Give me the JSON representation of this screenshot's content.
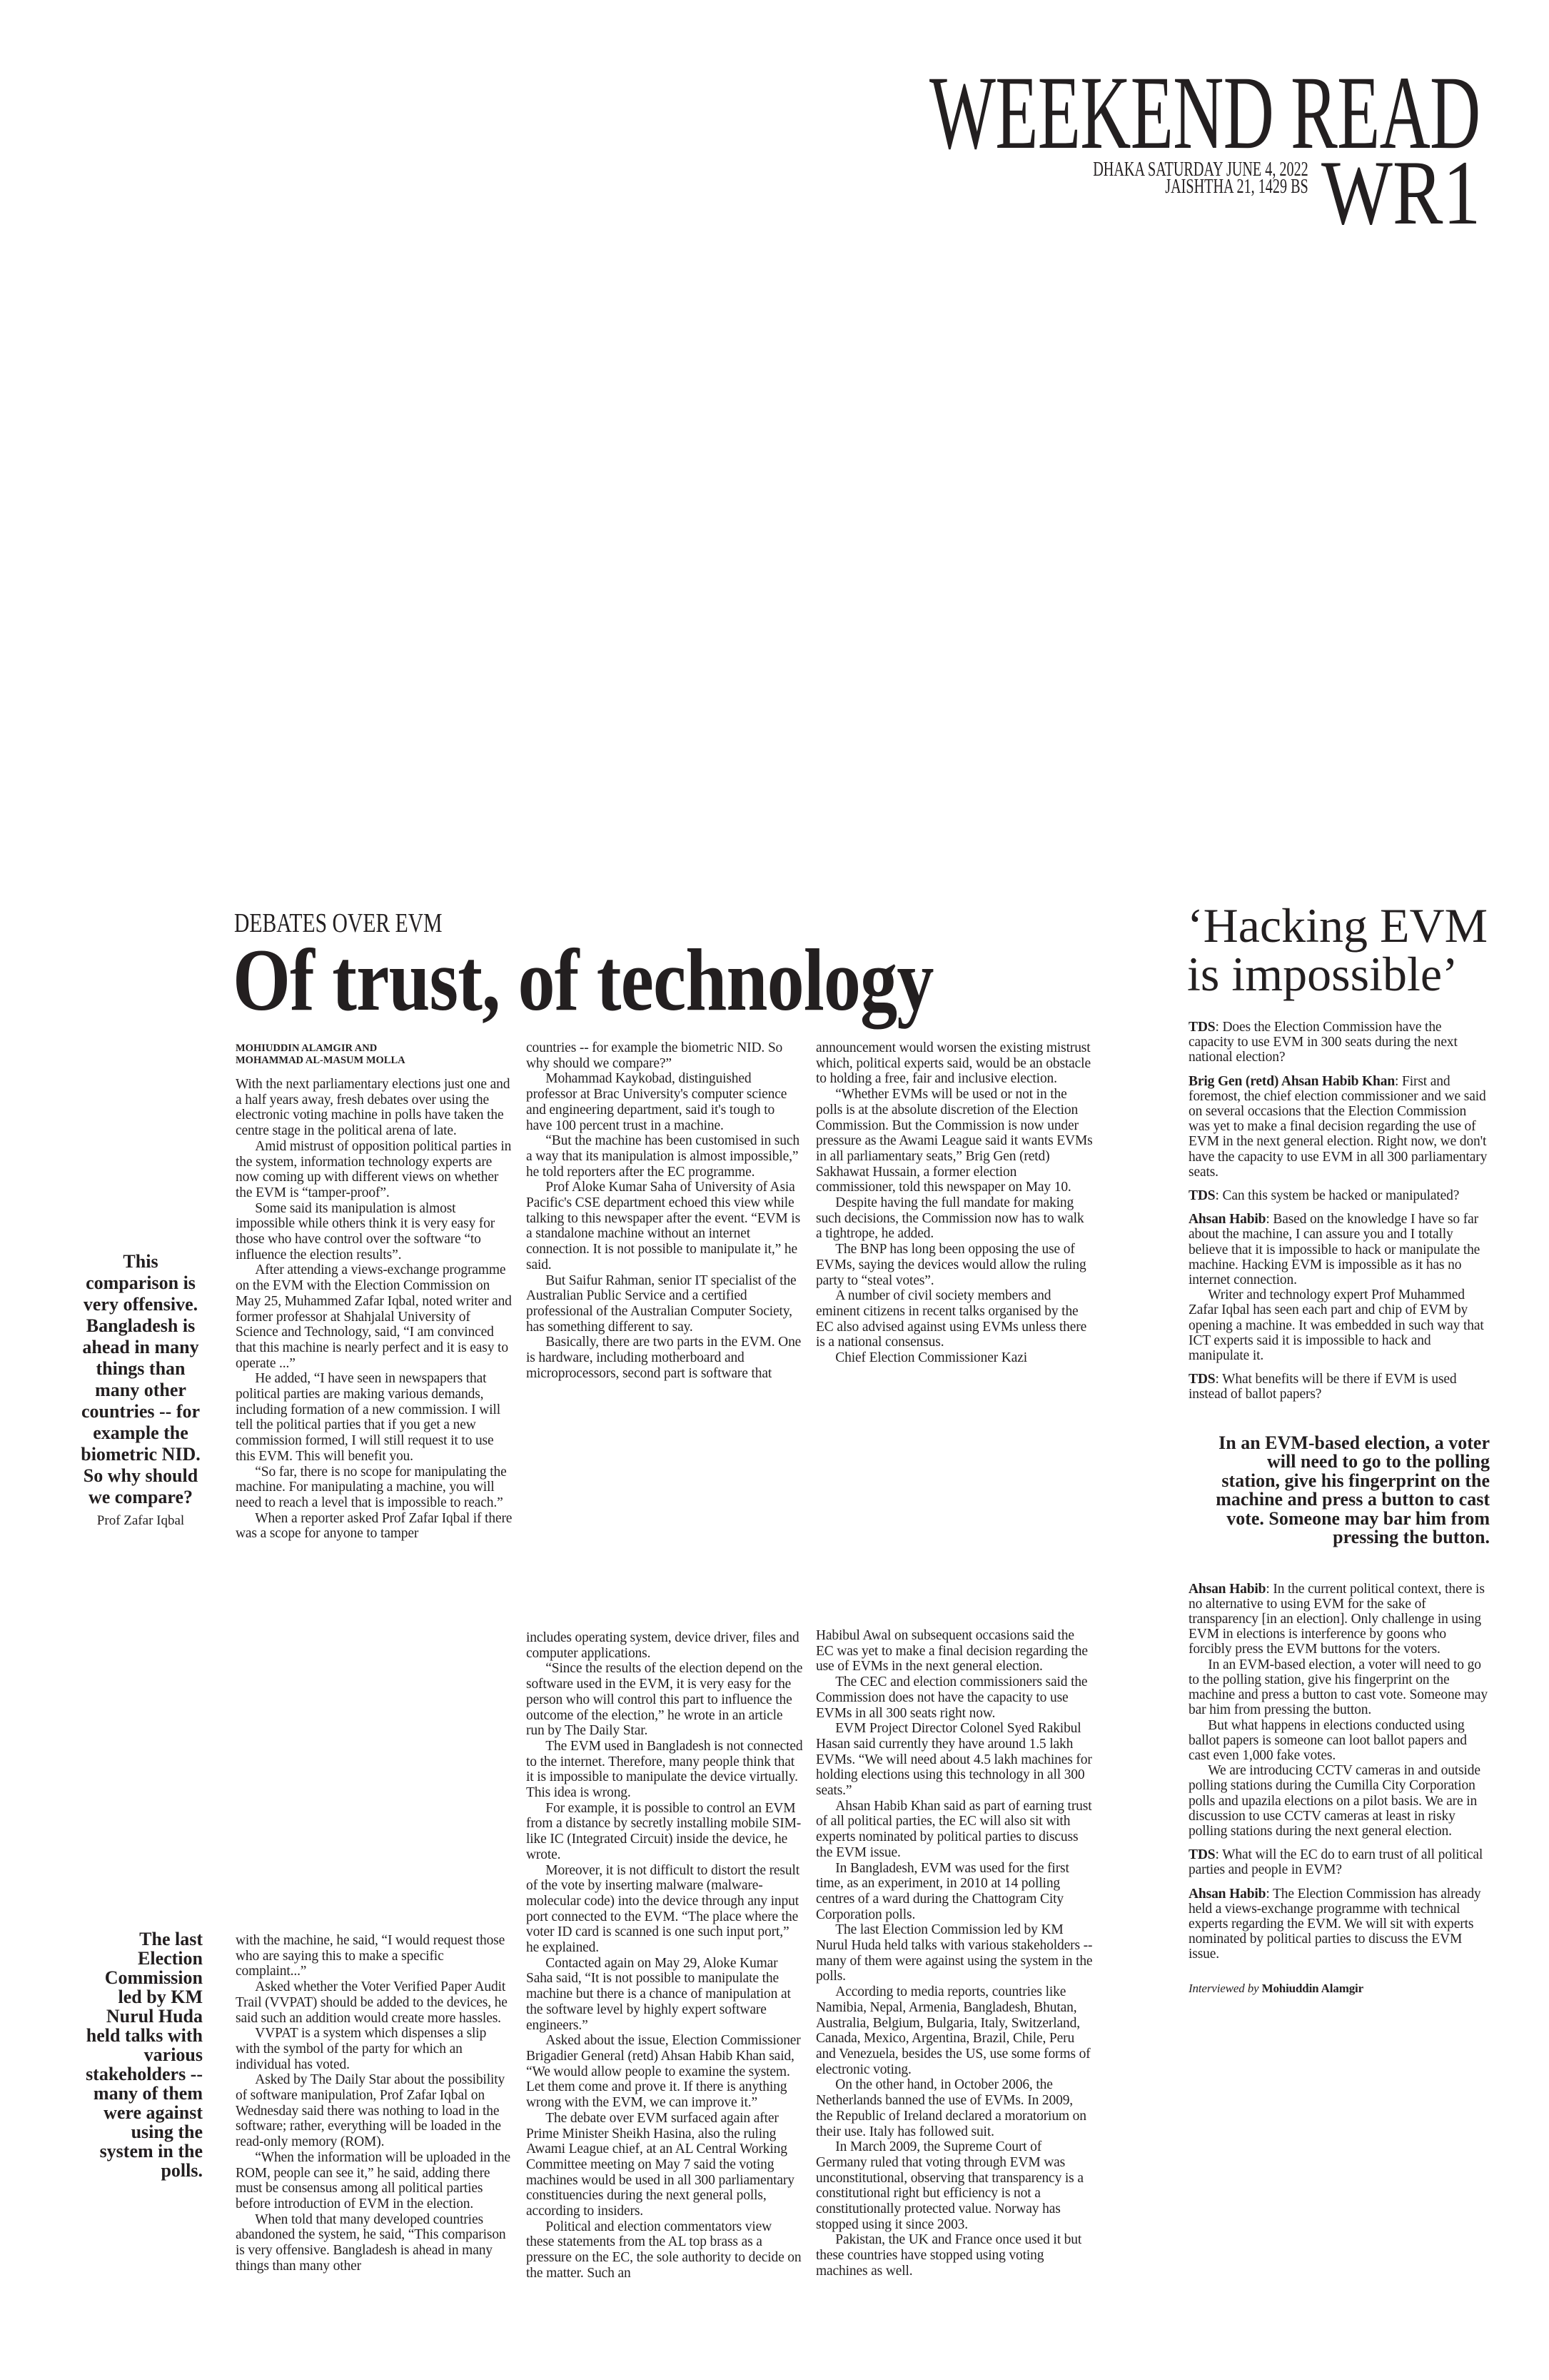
{
  "header": {
    "section_title": "WEEKEND READ",
    "date_line1": "DHAKA SATURDAY JUNE 4, 2022",
    "date_line2": "JAISHTHA 21, 1429 BS",
    "page_code": "WR1"
  },
  "article": {
    "kicker": "DEBATES OVER EVM",
    "headline": "Of trust, of technology",
    "byline": [
      "MOHIUDDIN ALAMGIR AND",
      "MOHAMMAD AL-MASUM MOLLA"
    ],
    "columns": {
      "top": [
        [
          "With the next parliamentary elections just one and a half years away, fresh debates over using the electronic voting machine in polls have taken the centre stage in the political arena of late.",
          "Amid mistrust of opposition political parties in the system, information technology experts are now coming up with different views on whether the EVM is “tamper-proof”.",
          "Some said its manipulation is almost impossible while others think it is very easy for those who have control over the software “to influence the election results”.",
          "After attending a views-exchange programme on the EVM with the Election Commission on May 25, Muhammed Zafar Iqbal, noted writer and former professor at Shahjalal University of Science and Technology, said, “I am convinced that this machine is nearly perfect and it is easy to operate ...”",
          "He added, “I have seen in newspapers that political parties are making various demands, including formation of a new commission. I will tell the political parties that if you get a new commission formed, I will still request it to use this EVM. This will benefit you.",
          "“So far, there is no scope for manipulating the machine. For manipulating a machine, you will need to reach a level that is impossible to reach.”",
          "When a reporter asked Prof Zafar Iqbal if there was a scope for anyone to tamper"
        ],
        [
          "countries -- for example the biometric NID. So why should we compare?”",
          "Mohammad Kaykobad, distinguished professor at Brac University's computer science and engineering department, said it's tough to have 100 percent trust in a machine.",
          "“But the machine has been customised in such a way that its manipulation is almost impossible,” he told reporters after the EC programme.",
          "Prof Aloke Kumar Saha of University of Asia Pacific's CSE department echoed this view while talking to this newspaper after the event.  “EVM is a standalone machine without an internet connection. It is not possible to manipulate it,” he said.",
          "But Saifur Rahman, senior IT specialist of the Australian Public Service and a certified professional of the Australian Computer Society, has something different to say.",
          "Basically, there are two parts in the EVM. One is hardware, including motherboard and microprocessors, second part is software that"
        ],
        [
          "announcement would worsen the existing mistrust which, political experts said, would be an obstacle to holding a free, fair and inclusive election.",
          "“Whether EVMs will be used or not in the polls is at the absolute discretion of the Election Commission. But the Commission is now under pressure as the Awami League said it wants EVMs in all parliamentary seats,” Brig Gen (retd) Sakhawat Hussain, a former election commissioner, told this newspaper on May 10.",
          "Despite having the full mandate for making such decisions, the Commission now has to walk a tightrope, he added.",
          "The BNP has long been opposing the use of EVMs, saying the devices would allow the ruling party to “steal votes”.",
          "A number of civil society members and eminent citizens in recent talks organised by the EC also advised against using EVMs unless there is a national consensus.",
          "Chief Election Commissioner Kazi"
        ]
      ],
      "bottom": [
        [
          "with the machine, he said, “I would request those who are saying this to make a specific complaint...”",
          "Asked whether the Voter Verified Paper Audit Trail (VVPAT) should be added to the devices, he said such an addition would create more hassles.",
          "VVPAT is a system which dispenses a slip with the symbol of the party for which an individual has voted.",
          "Asked by The Daily Star about the possibility of software manipulation, Prof Zafar Iqbal on Wednesday said there was nothing to load in the software; rather, everything will be loaded in the read-only memory (ROM).",
          "“When the information will be uploaded in the ROM, people can see it,” he said, adding there must be consensus among all political parties before introduction of EVM in the election.",
          "When told that many developed countries abandoned the system, he said, “This comparison is very offensive. Bangladesh is ahead in many things than many other"
        ],
        [
          "includes operating system, device driver, files and computer applications.",
          "“Since the results of the election depend on the software used in the EVM, it is very easy for the person who will control this part to influence the outcome of the election,” he wrote in an article run by The Daily Star.",
          "The EVM used in Bangladesh is not connected to the internet. Therefore, many people think that it is impossible to manipulate the device virtually. This idea is wrong.",
          "For example, it is possible to control an EVM from a distance by secretly installing mobile SIM-like IC (Integrated Circuit) inside the device, he wrote.",
          "Moreover, it is not difficult to distort the result of the vote by inserting malware (malware-molecular code) into the device through any input port connected to the EVM. “The place where the voter ID card is scanned is one such input port,” he explained.",
          "Contacted again on May 29, Aloke Kumar Saha said, “It is not possible to manipulate the machine but there is a chance of manipulation at the software level by highly expert software engineers.”",
          "Asked about the issue, Election Commissioner Brigadier General (retd) Ahsan Habib Khan said, “We would allow people to examine the system. Let them come and prove it. If there is anything wrong with the EVM, we can improve it.”",
          "The debate over EVM surfaced again after Prime Minister Sheikh Hasina, also the ruling Awami League chief, at an AL Central Working Committee meeting on May 7 said the voting machines would be used in all 300 parliamentary constituencies during the next general polls, according to insiders.",
          "Political and election commentators view these statements from the AL top brass as a pressure on the EC, the sole authority to decide on the matter. Such an"
        ],
        [
          "Habibul Awal on subsequent occasions said the EC was yet to make a final decision regarding the use of EVMs in the next general election.",
          "The CEC and election commissioners said the Commission does not have the capacity to use EVMs in all 300 seats right now.",
          "EVM Project Director Colonel Syed Rakibul Hasan said currently they have around 1.5 lakh EVMs. “We will need about 4.5 lakh machines for holding elections using this technology in all 300 seats.”",
          "Ahsan Habib Khan said as part of earning trust of all political parties, the EC will also sit with experts nominated by political parties to discuss the EVM issue.",
          "In Bangladesh, EVM was used for the first time, as an experiment, in 2010 at 14 polling centres of a ward during the Chattogram City Corporation polls.",
          "The last Election Commission led by KM Nurul Huda held talks with various stakeholders -- many of them were against using the system in the polls.",
          "According to media reports, countries like Namibia, Nepal, Armenia, Bangladesh, Bhutan, Australia, Belgium, Bulgaria, Italy, Switzerland, Canada, Mexico, Argentina, Brazil, Chile, Peru and Venezuela, besides the US, use some forms of electronic voting.",
          "On the other hand, in October 2006, the Netherlands banned the use of EVMs. In 2009, the Republic of Ireland declared a moratorium on their use. Italy has followed suit.",
          "In March 2009, the Supreme Court of Germany ruled that voting through EVM was unconstitutional, observing that transparency is a constitutional right but efficiency is not a constitutionally protected value. Norway has stopped using it since 2003.",
          "Pakistan, the UK and France once used it but these countries have stopped using voting machines as well."
        ]
      ]
    },
    "pull_quotes": [
      {
        "text": "This comparison is very offensive. Bangladesh is ahead in many things than many other countries -- for example the biometric NID. So why should we compare?",
        "attribution": "Prof Zafar Iqbal"
      },
      {
        "text": "The last Election Commission led by KM Nurul Huda held talks with various stakeholders -- many of them were against using the system in the polls."
      }
    ]
  },
  "interview": {
    "headline_line1": "‘Hacking EVM",
    "headline_line2": "is impossible’",
    "top_blocks": [
      {
        "speaker": "TDS",
        "paragraphs": [
          "Does the Election Commission have the capacity to use EVM in 300 seats during the next national election?"
        ]
      },
      {
        "speaker": "Brig Gen (retd) Ahsan Habib Khan",
        "paragraphs": [
          "First and foremost, the chief election commissioner and we said on several occasions that the Election Commission was yet to make a final decision regarding the use of EVM in the next general election. Right now, we don't have the capacity to use EVM in all 300 parliamentary seats."
        ]
      },
      {
        "speaker": "TDS",
        "paragraphs": [
          "Can this system be hacked or manipulated?"
        ]
      },
      {
        "speaker": "Ahsan Habib",
        "paragraphs": [
          "Based on the knowledge I have so far about the machine, I can assure you and I totally believe that it is impossible to hack or manipulate the machine. Hacking EVM is impossible as it has no internet connection.",
          "Writer and technology expert Prof Muhammed Zafar Iqbal has seen each part and chip of EVM by opening a machine. It was embedded in such way that ICT experts said it is impossible to hack and manipulate it."
        ]
      },
      {
        "speaker": "TDS",
        "paragraphs": [
          "What benefits will be there if EVM is used instead of ballot papers?"
        ]
      }
    ],
    "pull_quote": "In an EVM-based election, a voter will need to go to the polling station, give his fingerprint on the machine and press a button to cast vote. Someone may bar him from pressing the button.",
    "bottom_blocks": [
      {
        "speaker": "Ahsan Habib",
        "paragraphs": [
          "In the current political context, there is no alternative to using EVM for the sake of transparency [in an election]. Only challenge in using EVM in elections is interference by goons who forcibly press the EVM buttons for the voters.",
          "In an EVM-based election, a voter will need to go to the polling station, give his fingerprint on the machine and press a button to cast vote. Someone may bar him from pressing the button.",
          "But what happens in elections conducted using ballot papers is someone can loot ballot papers and cast even 1,000 fake votes.",
          "We are introducing CCTV cameras in and outside polling stations during the Cumilla City Corporation polls and upazila elections on a pilot basis. We are in discussion to use CCTV cameras at least in risky polling stations during the next general election."
        ]
      },
      {
        "speaker": "TDS",
        "paragraphs": [
          "What will the EC do to earn trust of all political parties and people in EVM?"
        ]
      },
      {
        "speaker": "Ahsan Habib",
        "paragraphs": [
          "The Election Commission has already held a views-exchange programme with technical experts regarding the EVM. We will sit with experts nominated by political parties to discuss the EVM issue."
        ]
      }
    ],
    "credit_label": "Interviewed by",
    "credit_name": "Mohiuddin Alamgir"
  }
}
